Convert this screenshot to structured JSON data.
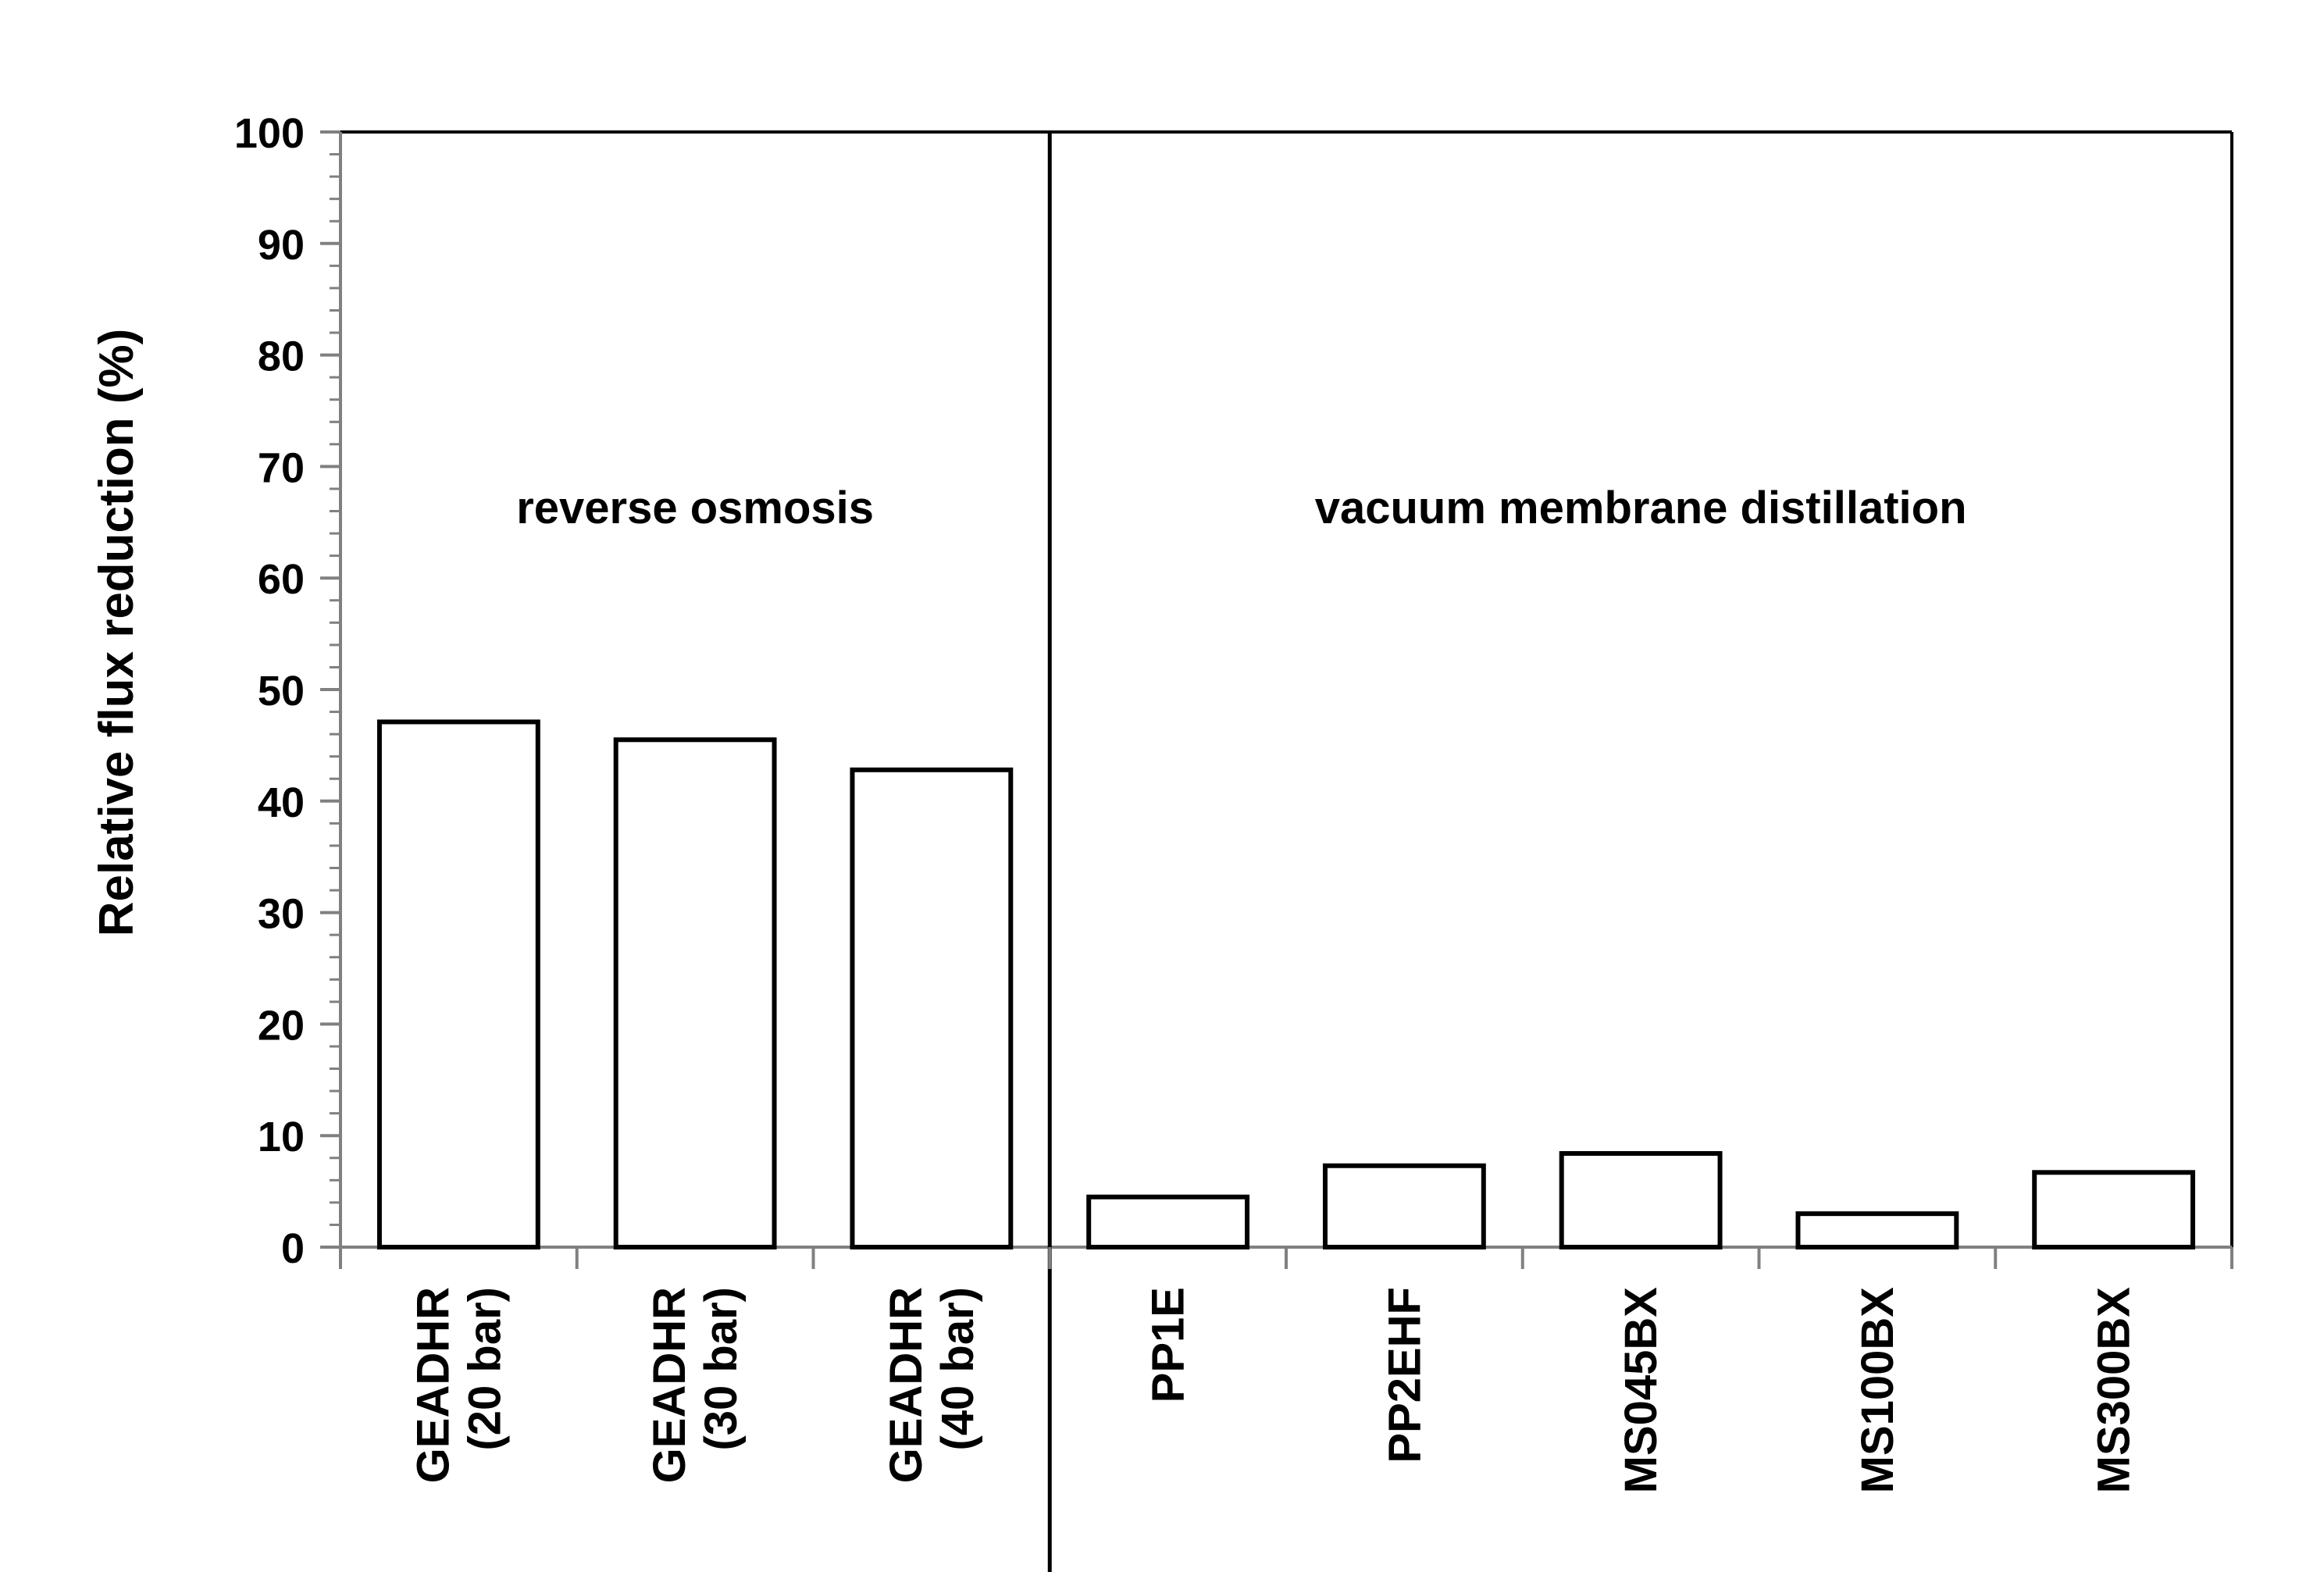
{
  "chart_data": {
    "type": "bar",
    "ylabel": "Relative flux reduction  (%)",
    "ylim": [
      0,
      100
    ],
    "yticks": [
      "0",
      "10",
      "20",
      "30",
      "40",
      "50",
      "60",
      "70",
      "80",
      "90",
      "100"
    ],
    "categories": [
      [
        "GEADHR",
        "(20 bar)"
      ],
      [
        "GEADHR",
        "(30 bar)"
      ],
      [
        "GEADHR",
        "(40 bar)"
      ],
      [
        "PP1E"
      ],
      [
        "PP2EHF"
      ],
      [
        "MS045BX"
      ],
      [
        "MS100BX"
      ],
      [
        "MS300BX"
      ]
    ],
    "values": [
      47.1,
      45.5,
      42.8,
      4.5,
      7.3,
      8.4,
      3.0,
      6.7
    ],
    "groups": [
      {
        "label": "reverse osmosis",
        "start": 0,
        "end": 2
      },
      {
        "label": "vacuum membrane distillation",
        "start": 3,
        "end": 7
      }
    ],
    "bar_fill": "#ffffff",
    "bar_stroke": "#000000",
    "axis_color": "#808080",
    "grid": false,
    "legend": "none"
  }
}
